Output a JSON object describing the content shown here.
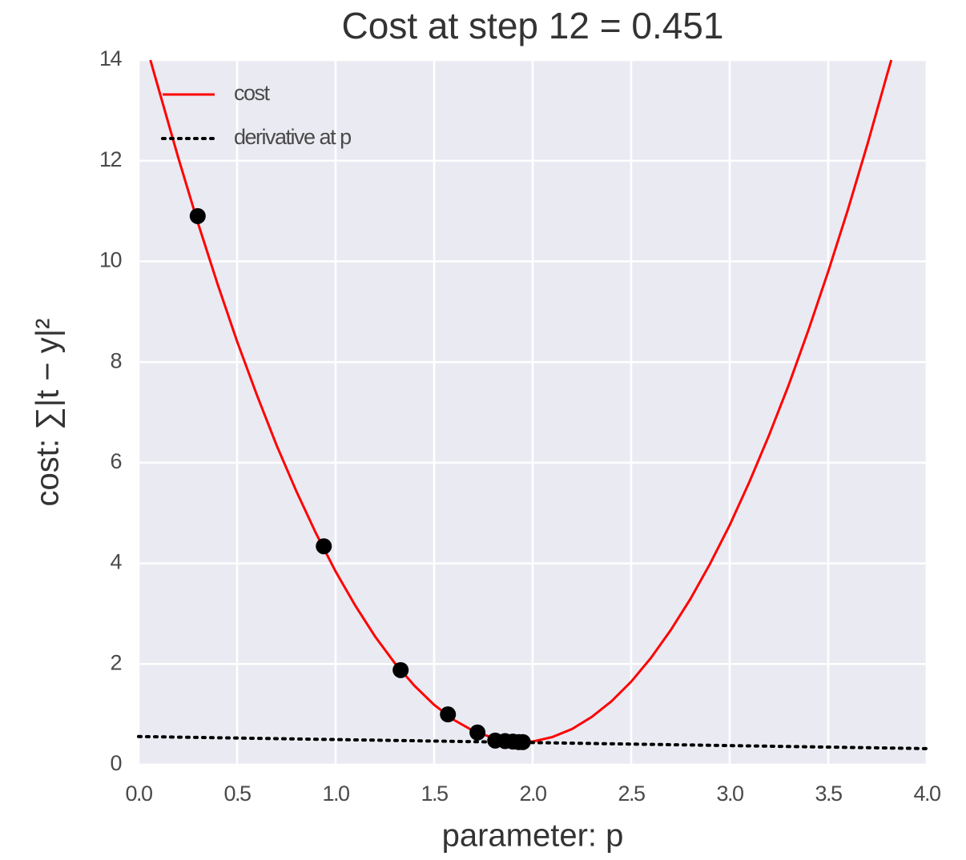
{
  "chart_data": {
    "type": "line",
    "title": "Cost at step 12 = 0.451",
    "xlabel": "parameter: p",
    "ylabel": "cost: ∑|t − y|²",
    "xlim": [
      0,
      4
    ],
    "ylim": [
      0,
      14
    ],
    "xticks": [
      {
        "value": 0,
        "label": "0.0"
      },
      0.5,
      {
        "value": 1,
        "label": "1.0"
      },
      1.5,
      {
        "value": 2,
        "label": "2.0"
      },
      2.5,
      {
        "value": 3,
        "label": "3.0"
      },
      3.5,
      {
        "value": 4,
        "label": "4.0"
      }
    ],
    "yticks": [
      0,
      2,
      4,
      6,
      8,
      10,
      12,
      14
    ],
    "grid": true,
    "legend": "upper left",
    "series": [
      {
        "name": "cost",
        "color": "#ff0000",
        "style": "solid",
        "x": [
          0.06,
          0.1,
          0.2,
          0.3,
          0.4,
          0.5,
          0.6,
          0.7,
          0.8,
          0.9,
          1.0,
          1.1,
          1.2,
          1.3,
          1.4,
          1.5,
          1.6,
          1.7,
          1.8,
          1.9,
          2.0,
          2.1,
          2.2,
          2.3,
          2.4,
          2.5,
          2.6,
          2.7,
          2.8,
          2.9,
          3.0,
          3.1,
          3.2,
          3.3,
          3.4,
          3.5,
          3.6,
          3.7,
          3.8,
          3.82
        ],
        "values": [
          14.0,
          13.45,
          12.08,
          10.78,
          9.56,
          8.41,
          7.35,
          6.35,
          5.44,
          4.6,
          3.84,
          3.16,
          2.55,
          2.02,
          1.57,
          1.19,
          0.89,
          0.67,
          0.53,
          0.46,
          0.46,
          0.55,
          0.71,
          0.95,
          1.26,
          1.65,
          2.12,
          2.67,
          3.29,
          3.99,
          4.76,
          5.62,
          6.55,
          7.55,
          8.64,
          9.8,
          11.03,
          12.34,
          13.73,
          14.0
        ]
      },
      {
        "name": "derivative at p",
        "color": "#000000",
        "style": "dotted",
        "x": [
          0,
          4
        ],
        "values": [
          0.56,
          0.32
        ]
      }
    ],
    "points": {
      "color": "#000000",
      "x": [
        0.3,
        0.94,
        1.33,
        1.57,
        1.72,
        1.81,
        1.86,
        1.9,
        1.93,
        1.95
      ],
      "values": [
        10.9,
        4.34,
        1.88,
        1.0,
        0.64,
        0.48,
        0.47,
        0.46,
        0.45,
        0.45
      ]
    }
  }
}
